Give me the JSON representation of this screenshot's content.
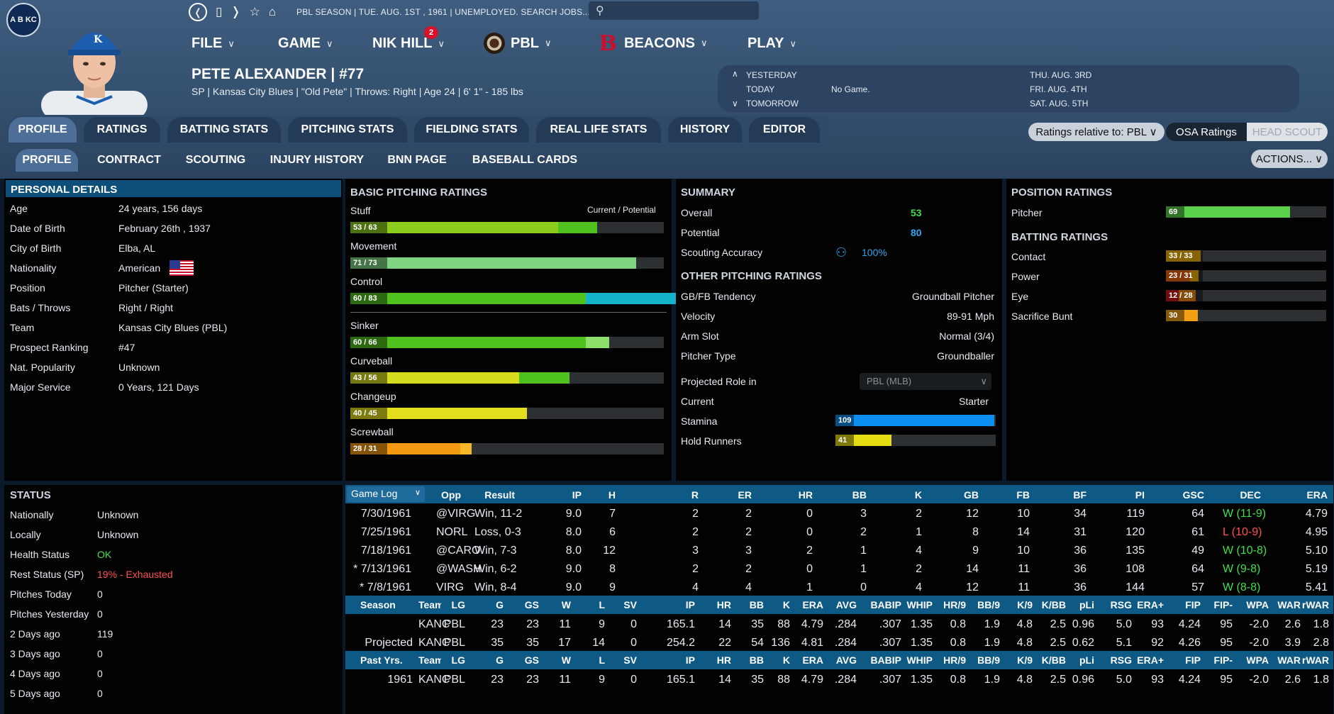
{
  "top": {
    "season": "PBL SEASON | TUE. AUG. 1ST , 1961 | UNEMPLOYED. SEARCH JOBS...",
    "search_placeholder": "",
    "team_logo": "A B KC"
  },
  "menu": {
    "file": "FILE",
    "game": "GAME",
    "user": "NIK HILL",
    "user_badge": "2",
    "league": "PBL",
    "team": "BEACONS",
    "play": "PLAY",
    "chev": "∨"
  },
  "player": {
    "name": "PETE ALEXANDER | #77",
    "subline": "SP | Kansas City Blues | \"Old Pete\" | Throws: Right | Age 24 | 6' 1\" - 185 lbs"
  },
  "schedule": {
    "yesterday": "YESTERDAY",
    "today": "TODAY",
    "today_game": "No Game.",
    "tomorrow": "TOMORROW",
    "d1": "THU. AUG. 3RD",
    "d2": "FRI. AUG. 4TH",
    "d3": "SAT. AUG. 5TH"
  },
  "tabs": [
    "PROFILE",
    "RATINGS",
    "BATTING STATS",
    "PITCHING STATS",
    "FIELDING STATS",
    "REAL LIFE STATS",
    "HISTORY",
    "EDITOR"
  ],
  "subtabs": [
    "PROFILE",
    "CONTRACT",
    "SCOUTING",
    "INJURY HISTORY",
    "BNN PAGE",
    "BASEBALL CARDS"
  ],
  "controls": {
    "ratings_relative": "Ratings relative to: PBL ∨",
    "osa": "OSA Ratings",
    "head_scout": "HEAD SCOUT",
    "actions": "ACTIONS... ∨"
  },
  "personal": {
    "title": "PERSONAL DETAILS",
    "rows": [
      {
        "k": "Age",
        "v": "24 years, 156 days"
      },
      {
        "k": "Date of Birth",
        "v": "February 26th , 1937"
      },
      {
        "k": "City of Birth",
        "v": "Elba, AL"
      },
      {
        "k": "Nationality",
        "v": "American"
      },
      {
        "k": "Position",
        "v": "Pitcher (Starter)"
      },
      {
        "k": "Bats / Throws",
        "v": "Right / Right"
      },
      {
        "k": "Team",
        "v": "Kansas City Blues (PBL)"
      },
      {
        "k": "Prospect Ranking",
        "v": "#47"
      },
      {
        "k": "Nat. Popularity",
        "v": "Unknown"
      },
      {
        "k": "Major Service",
        "v": "0 Years, 121 Days"
      }
    ]
  },
  "pitching": {
    "title": "BASIC PITCHING RATINGS",
    "legend": "Current / Potential",
    "rows": [
      {
        "name": "Stuff",
        "label": "53 / 63",
        "cur": 53,
        "pot": 63,
        "c1": "#8ccc1e",
        "c2": "#4fc21f"
      },
      {
        "name": "Movement",
        "label": "71 / 73",
        "cur": 71,
        "pot": 73,
        "c1": "#7fd482",
        "c2": "#7fd482"
      },
      {
        "name": "Control",
        "label": "60 / 83",
        "cur": 60,
        "pot": 83,
        "c1": "#4fc21f",
        "c2": "#14b3c9"
      },
      {
        "name": "Sinker",
        "label": "60 / 66",
        "cur": 60,
        "pot": 66,
        "c1": "#4fc21f",
        "c2": "#8fe06a"
      },
      {
        "name": "Curveball",
        "label": "43 / 56",
        "cur": 43,
        "pot": 56,
        "c1": "#d6dc1e",
        "c2": "#4fc21f"
      },
      {
        "name": "Changeup",
        "label": "40 / 45",
        "cur": 40,
        "pot": 45,
        "c1": "#e3df1e",
        "c2": "#e3df1e"
      },
      {
        "name": "Screwball",
        "label": "28 / 31",
        "cur": 28,
        "pot": 31,
        "c1": "#f39a12",
        "c2": "#f5b62a"
      }
    ]
  },
  "summary": {
    "title": "SUMMARY",
    "overall_k": "Overall",
    "overall": "53",
    "potential_k": "Potential",
    "potential": "80",
    "scout_k": "Scouting Accuracy",
    "scout": "100%",
    "other_title": "OTHER PITCHING RATINGS",
    "other": [
      {
        "k": "GB/FB Tendency",
        "v": "Groundball Pitcher"
      },
      {
        "k": "Velocity",
        "v": "89-91 Mph"
      },
      {
        "k": "Arm Slot",
        "v": "Normal (3/4)"
      },
      {
        "k": "Pitcher Type",
        "v": "Groundballer"
      }
    ],
    "role_k": "Projected Role in",
    "role_sel": "PBL (MLB)",
    "current_k": "Current",
    "current": "Starter",
    "stamina_k": "Stamina",
    "stamina": 109,
    "stamina_label": "109",
    "hold_k": "Hold Runners",
    "hold": 41,
    "hold_label": "41"
  },
  "position": {
    "title": "POSITION RATINGS",
    "pitcher_k": "Pitcher",
    "pitcher": 69,
    "pitcher_label": "69",
    "batting_title": "BATTING RATINGS",
    "batting": [
      {
        "name": "Contact",
        "label": "33 / 33",
        "cur": 33,
        "pot": 33,
        "c1": "#f7b40c",
        "c2": "#f7b40c"
      },
      {
        "name": "Power",
        "label": "23 / 31",
        "cur": 23,
        "pot": 31,
        "c1": "#f06410",
        "c2": "#f7b40c"
      },
      {
        "name": "Eye",
        "label": "12 / 28",
        "cur": 12,
        "pot": 28,
        "c1": "#d01818",
        "c2": "#f38a12"
      },
      {
        "name": "Sacrifice Bunt",
        "label": "30",
        "cur": 30,
        "pot": 30,
        "c1": "#f5a012",
        "c2": "#f5a012"
      }
    ]
  },
  "status": {
    "title": "STATUS",
    "rows": [
      {
        "k": "Nationally",
        "v": "Unknown",
        "c": "#e6ebf1"
      },
      {
        "k": "Locally",
        "v": "Unknown",
        "c": "#e6ebf1"
      },
      {
        "k": "Health Status",
        "v": "OK",
        "c": "#3ee04a"
      },
      {
        "k": "Rest Status (SP)",
        "v": "19% - Exhausted",
        "c": "#ff5050"
      },
      {
        "k": "Pitches Today",
        "v": "0",
        "c": "#e6ebf1"
      },
      {
        "k": "Pitches Yesterday",
        "v": "0",
        "c": "#e6ebf1"
      },
      {
        "k": "2 Days ago",
        "v": "119",
        "c": "#e6ebf1"
      },
      {
        "k": "3 Days ago",
        "v": "0",
        "c": "#e6ebf1"
      },
      {
        "k": "4 Days ago",
        "v": "0",
        "c": "#e6ebf1"
      },
      {
        "k": "5 Days ago",
        "v": "0",
        "c": "#e6ebf1"
      }
    ]
  },
  "gamelog": {
    "select": "Game Log",
    "headers": [
      "Opp",
      "Result",
      "IP",
      "H",
      "R",
      "ER",
      "HR",
      "BB",
      "K",
      "GB",
      "FB",
      "BF",
      "PI",
      "GSC",
      "DEC",
      "ERA"
    ],
    "rows": [
      [
        "7/30/1961",
        "@VIRG",
        "Win, 11-2",
        "9.0",
        "7",
        "2",
        "2",
        "0",
        "3",
        "2",
        "12",
        "10",
        "34",
        "119",
        "64",
        "W (11-9)",
        "4.79"
      ],
      [
        "7/25/1961",
        "NORL",
        "Loss, 0-3",
        "8.0",
        "6",
        "2",
        "2",
        "0",
        "2",
        "1",
        "8",
        "14",
        "31",
        "120",
        "61",
        "L (10-9)",
        "4.95"
      ],
      [
        "7/18/1961",
        "@CARO",
        "Win, 7-3",
        "8.0",
        "12",
        "3",
        "3",
        "2",
        "1",
        "4",
        "9",
        "10",
        "36",
        "135",
        "49",
        "W (10-8)",
        "5.10"
      ],
      [
        "* 7/13/1961",
        "@WASH",
        "Win, 6-2",
        "9.0",
        "8",
        "2",
        "2",
        "0",
        "1",
        "2",
        "14",
        "11",
        "36",
        "108",
        "64",
        "W (9-8)",
        "5.19"
      ],
      [
        "* 7/8/1961",
        "VIRG",
        "Win, 8-4",
        "9.0",
        "9",
        "4",
        "4",
        "1",
        "0",
        "4",
        "12",
        "11",
        "36",
        "144",
        "57",
        "W (8-8)",
        "5.41"
      ]
    ]
  },
  "season": {
    "headers": [
      "Season",
      "Team",
      "LG",
      "G",
      "GS",
      "W",
      "L",
      "SV",
      "IP",
      "HR",
      "BB",
      "K",
      "ERA",
      "AVG",
      "BABIP",
      "WHIP",
      "HR/9",
      "BB/9",
      "K/9",
      "K/BB",
      "pLi",
      "RSG",
      "ERA+",
      "FIP",
      "FIP-",
      "WPA",
      "WAR",
      "rWAR"
    ],
    "rows": [
      [
        "",
        "KANC",
        "PBL",
        "23",
        "23",
        "11",
        "9",
        "0",
        "165.1",
        "14",
        "35",
        "88",
        "4.79",
        ".284",
        ".307",
        "1.35",
        "0.8",
        "1.9",
        "4.8",
        "2.5",
        "0.96",
        "5.0",
        "93",
        "4.24",
        "95",
        "-2.0",
        "2.6",
        "1.8"
      ],
      [
        "Projected",
        "KANC",
        "PBL",
        "35",
        "35",
        "17",
        "14",
        "0",
        "254.2",
        "22",
        "54",
        "136",
        "4.81",
        ".284",
        ".307",
        "1.35",
        "0.8",
        "1.9",
        "4.8",
        "2.5",
        "0.62",
        "5.1",
        "92",
        "4.26",
        "95",
        "-2.0",
        "3.9",
        "2.8"
      ]
    ]
  },
  "past": {
    "headers": [
      "Past Yrs.",
      "Team",
      "LG",
      "G",
      "GS",
      "W",
      "L",
      "SV",
      "IP",
      "HR",
      "BB",
      "K",
      "ERA",
      "AVG",
      "BABIP",
      "WHIP",
      "HR/9",
      "BB/9",
      "K/9",
      "K/BB",
      "pLi",
      "RSG",
      "ERA+",
      "FIP",
      "FIP-",
      "WPA",
      "WAR",
      "rWAR"
    ],
    "rows": [
      [
        "1961",
        "KANC",
        "PBL",
        "23",
        "23",
        "11",
        "9",
        "0",
        "165.1",
        "14",
        "35",
        "88",
        "4.79",
        ".284",
        ".307",
        "1.35",
        "0.8",
        "1.9",
        "4.8",
        "2.5",
        "0.96",
        "5.0",
        "93",
        "4.24",
        "95",
        "-2.0",
        "2.6",
        "1.8"
      ]
    ]
  }
}
